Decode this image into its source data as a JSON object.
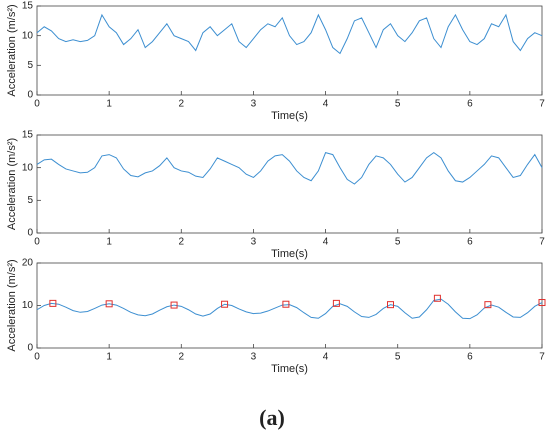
{
  "chart_data": [
    {
      "type": "line",
      "xlabel": "Time(s)",
      "ylabel": "Acceleration (m/s²)",
      "xlim": [
        0,
        7
      ],
      "xticks": [
        0,
        1,
        2,
        3,
        4,
        5,
        6,
        7
      ],
      "ylim": [
        0,
        15
      ],
      "yticks": [
        0,
        5,
        10,
        15
      ],
      "x": [
        0,
        0.1,
        0.2,
        0.3,
        0.4,
        0.5,
        0.6,
        0.7,
        0.8,
        0.9,
        1,
        1.1,
        1.2,
        1.3,
        1.4,
        1.5,
        1.6,
        1.7,
        1.8,
        1.9,
        2,
        2.1,
        2.2,
        2.3,
        2.4,
        2.5,
        2.6,
        2.7,
        2.8,
        2.9,
        3,
        3.1,
        3.2,
        3.3,
        3.4,
        3.5,
        3.6,
        3.7,
        3.8,
        3.9,
        4,
        4.1,
        4.2,
        4.3,
        4.4,
        4.5,
        4.6,
        4.7,
        4.8,
        4.9,
        5,
        5.1,
        5.2,
        5.3,
        5.4,
        5.5,
        5.6,
        5.7,
        5.8,
        5.9,
        6,
        6.1,
        6.2,
        6.3,
        6.4,
        6.5,
        6.6,
        6.7,
        6.8,
        6.9,
        7
      ],
      "series": [
        {
          "color": "#3d8fd1",
          "values": [
            10.5,
            11.5,
            10.8,
            9.5,
            9.0,
            9.3,
            9.0,
            9.2,
            10.0,
            13.5,
            11.5,
            10.5,
            8.5,
            9.5,
            11.0,
            8.0,
            9.0,
            10.5,
            12.0,
            10.0,
            9.5,
            9.0,
            7.5,
            10.5,
            11.5,
            10.0,
            11.0,
            12.0,
            9.0,
            8.0,
            9.5,
            11.0,
            12.0,
            11.5,
            13.0,
            10.0,
            8.5,
            9.0,
            10.5,
            13.5,
            11.0,
            8.0,
            7.0,
            9.5,
            12.5,
            13.0,
            10.5,
            8.0,
            11.0,
            12.0,
            10.0,
            9.0,
            10.5,
            12.5,
            13.0,
            9.5,
            8.0,
            11.5,
            13.5,
            11.0,
            9.0,
            8.5,
            9.5,
            12.0,
            11.5,
            13.5,
            9.0,
            7.5,
            9.5,
            10.5,
            10.0
          ]
        }
      ]
    },
    {
      "type": "line",
      "xlabel": "Time(s)",
      "ylabel": "Acceleration (m/s²)",
      "xlim": [
        0,
        7
      ],
      "xticks": [
        0,
        1,
        2,
        3,
        4,
        5,
        6,
        7
      ],
      "ylim": [
        0,
        15
      ],
      "yticks": [
        0,
        5,
        10,
        15
      ],
      "x": [
        0,
        0.1,
        0.2,
        0.3,
        0.4,
        0.5,
        0.6,
        0.7,
        0.8,
        0.9,
        1,
        1.1,
        1.2,
        1.3,
        1.4,
        1.5,
        1.6,
        1.7,
        1.8,
        1.9,
        2,
        2.1,
        2.2,
        2.3,
        2.4,
        2.5,
        2.6,
        2.7,
        2.8,
        2.9,
        3,
        3.1,
        3.2,
        3.3,
        3.4,
        3.5,
        3.6,
        3.7,
        3.8,
        3.9,
        4,
        4.1,
        4.2,
        4.3,
        4.4,
        4.5,
        4.6,
        4.7,
        4.8,
        4.9,
        5,
        5.1,
        5.2,
        5.3,
        5.4,
        5.5,
        5.6,
        5.7,
        5.8,
        5.9,
        6,
        6.1,
        6.2,
        6.3,
        6.4,
        6.5,
        6.6,
        6.7,
        6.8,
        6.9,
        7
      ],
      "series": [
        {
          "color": "#3d8fd1",
          "values": [
            10.5,
            11.2,
            11.3,
            10.5,
            9.8,
            9.5,
            9.2,
            9.3,
            10.0,
            11.8,
            12.0,
            11.5,
            9.8,
            8.8,
            8.6,
            9.2,
            9.5,
            10.3,
            11.5,
            10.0,
            9.5,
            9.3,
            8.7,
            8.5,
            9.8,
            11.5,
            11.0,
            10.5,
            10.0,
            9.0,
            8.5,
            9.5,
            11.0,
            11.8,
            12.0,
            11.0,
            9.5,
            8.5,
            8.0,
            9.5,
            12.3,
            12.0,
            10.0,
            8.2,
            7.5,
            8.5,
            10.5,
            11.8,
            11.5,
            10.5,
            9.0,
            7.8,
            8.5,
            10.0,
            11.5,
            12.3,
            11.5,
            9.5,
            8.0,
            7.8,
            8.5,
            9.5,
            10.5,
            11.8,
            11.5,
            10.0,
            8.5,
            8.8,
            10.5,
            12.0,
            10.0
          ]
        }
      ]
    },
    {
      "type": "line",
      "xlabel": "Time(s)",
      "ylabel": "Acceleration (m/s²)",
      "xlim": [
        0,
        7
      ],
      "xticks": [
        0,
        1,
        2,
        3,
        4,
        5,
        6,
        7
      ],
      "ylim": [
        0,
        20
      ],
      "yticks": [
        0,
        10,
        20
      ],
      "x": [
        0,
        0.1,
        0.2,
        0.3,
        0.4,
        0.5,
        0.6,
        0.7,
        0.8,
        0.9,
        1,
        1.1,
        1.2,
        1.3,
        1.4,
        1.5,
        1.6,
        1.7,
        1.8,
        1.9,
        2,
        2.1,
        2.2,
        2.3,
        2.4,
        2.5,
        2.6,
        2.7,
        2.8,
        2.9,
        3,
        3.1,
        3.2,
        3.3,
        3.4,
        3.5,
        3.6,
        3.7,
        3.8,
        3.9,
        4,
        4.1,
        4.2,
        4.3,
        4.4,
        4.5,
        4.6,
        4.7,
        4.8,
        4.9,
        5,
        5.1,
        5.2,
        5.3,
        5.4,
        5.5,
        5.6,
        5.7,
        5.8,
        5.9,
        6,
        6.1,
        6.2,
        6.3,
        6.4,
        6.5,
        6.6,
        6.7,
        6.8,
        6.9,
        7
      ],
      "series": [
        {
          "color": "#3d8fd1",
          "values": [
            9.0,
            10.0,
            10.5,
            10.3,
            9.6,
            8.8,
            8.4,
            8.6,
            9.3,
            10.1,
            10.4,
            10.1,
            9.3,
            8.4,
            7.8,
            7.6,
            8.0,
            8.9,
            9.7,
            10.1,
            9.8,
            9.0,
            8.0,
            7.5,
            8.0,
            9.3,
            10.3,
            10.0,
            9.2,
            8.5,
            8.1,
            8.2,
            8.7,
            9.4,
            10.1,
            10.2,
            9.5,
            8.3,
            7.2,
            7.0,
            8.1,
            9.8,
            10.4,
            9.8,
            8.5,
            7.4,
            7.2,
            7.9,
            9.3,
            10.2,
            9.8,
            8.3,
            7.0,
            7.3,
            9.0,
            11.2,
            11.5,
            10.3,
            8.5,
            7.0,
            6.9,
            7.8,
            9.4,
            10.1,
            9.6,
            8.4,
            7.3,
            7.2,
            8.3,
            9.8,
            10.7
          ]
        },
        {
          "color": "#e0302d",
          "marker": "square",
          "line": false,
          "x": [
            0.22,
            1.0,
            1.9,
            2.6,
            3.45,
            4.15,
            4.9,
            5.55,
            6.25,
            7.0
          ],
          "values": [
            10.5,
            10.4,
            10.1,
            10.3,
            10.3,
            10.5,
            10.2,
            11.7,
            10.2,
            10.7
          ]
        }
      ]
    }
  ],
  "caption": "(a)"
}
